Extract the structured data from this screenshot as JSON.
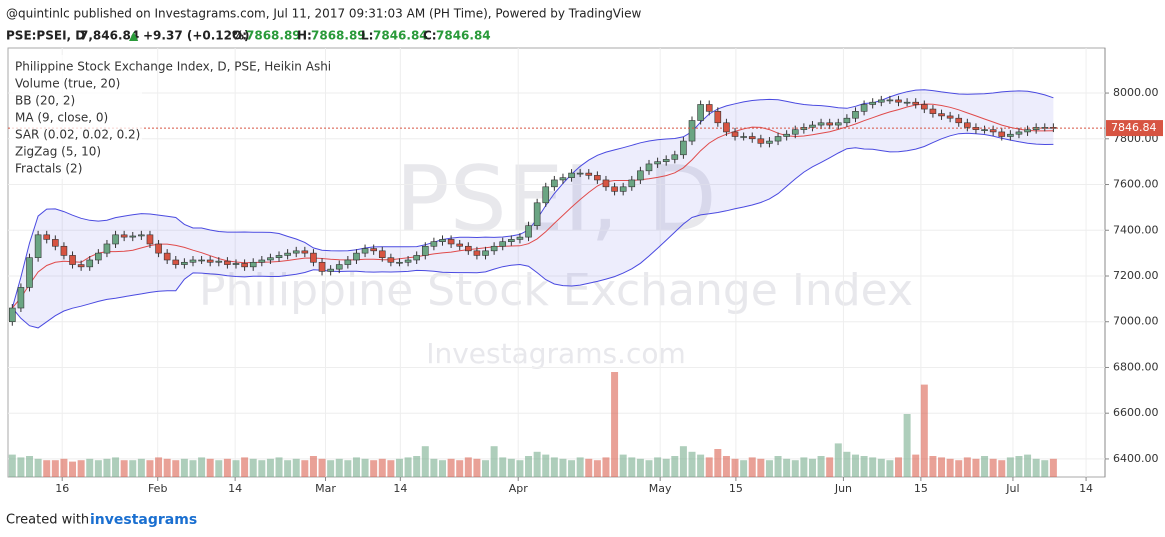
{
  "header": {
    "byline": "@quintinlc published on Investagrams.com, Jul 11, 2017 09:31:03 AM (PH Time), Powered by TradingView",
    "symbol": "PSE:PSEI, D",
    "last": "7,846.84",
    "arrow": "▲",
    "change": "+9.37 (+0.12%)",
    "o_label": "O:",
    "o": "7868.89",
    "h_label": "H:",
    "h": "7868.89",
    "l_label": "L:",
    "l": "7846.84",
    "c_label": "C:",
    "c": "7846.84"
  },
  "footer": {
    "created": "Created with",
    "brand": "investagrams"
  },
  "chart_data": {
    "type": "candlestick",
    "legend": [
      "Philippine Stock Exchange Index, D, PSE, Heikin Ashi",
      "Volume (true, 20)",
      "BB (20, 2)",
      "MA (9, close, 0)",
      "SAR (0.02, 0.02, 0.2)",
      "ZigZag (5, 10)",
      "Fractals (2)"
    ],
    "watermarks": [
      "PSEI, D",
      "Philippine Stock Exchange Index",
      "Investagrams.com"
    ],
    "up_color": "#6ba583",
    "down_color": "#d75442",
    "ma_color": "#e04b4b",
    "bb_color": "#4a4ae0",
    "open": [
      7000,
      7060,
      7150,
      7280,
      7380,
      7360,
      7330,
      7290,
      7250,
      7240,
      7270,
      7300,
      7340,
      7380,
      7370,
      7375,
      7380,
      7340,
      7300,
      7270,
      7250,
      7260,
      7270,
      7270,
      7260,
      7265,
      7250,
      7255,
      7240,
      7260,
      7270,
      7280,
      7290,
      7300,
      7310,
      7300,
      7260,
      7220,
      7230,
      7250,
      7270,
      7300,
      7320,
      7310,
      7280,
      7260,
      7260,
      7270,
      7290,
      7330,
      7350,
      7360,
      7340,
      7330,
      7310,
      7290,
      7310,
      7330,
      7350,
      7360,
      7370,
      7420,
      7520,
      7590,
      7620,
      7630,
      7650,
      7650,
      7640,
      7620,
      7590,
      7570,
      7590,
      7620,
      7660,
      7690,
      7700,
      7710,
      7730,
      7790,
      7880,
      7950,
      7920,
      7870,
      7830,
      7810,
      7810,
      7800,
      7780,
      7790,
      7810,
      7820,
      7840,
      7850,
      7860,
      7870,
      7860,
      7870,
      7890,
      7920,
      7950,
      7960,
      7970,
      7970,
      7960,
      7960,
      7950,
      7930,
      7910,
      7900,
      7890,
      7870,
      7850,
      7840,
      7840,
      7830,
      7810,
      7820,
      7830,
      7840,
      7850,
      7850
    ],
    "close": [
      7060,
      7150,
      7280,
      7380,
      7360,
      7330,
      7290,
      7250,
      7240,
      7270,
      7300,
      7340,
      7380,
      7370,
      7375,
      7380,
      7340,
      7300,
      7270,
      7250,
      7260,
      7270,
      7270,
      7260,
      7265,
      7250,
      7255,
      7240,
      7260,
      7270,
      7280,
      7290,
      7300,
      7310,
      7300,
      7260,
      7220,
      7230,
      7250,
      7270,
      7300,
      7320,
      7310,
      7280,
      7260,
      7260,
      7270,
      7290,
      7330,
      7350,
      7360,
      7340,
      7330,
      7310,
      7290,
      7310,
      7330,
      7350,
      7360,
      7370,
      7420,
      7520,
      7590,
      7620,
      7630,
      7650,
      7650,
      7640,
      7620,
      7590,
      7570,
      7590,
      7620,
      7660,
      7690,
      7700,
      7710,
      7730,
      7790,
      7880,
      7950,
      7920,
      7870,
      7830,
      7810,
      7810,
      7800,
      7780,
      7790,
      7810,
      7820,
      7840,
      7850,
      7860,
      7870,
      7860,
      7870,
      7890,
      7920,
      7950,
      7960,
      7970,
      7970,
      7960,
      7960,
      7950,
      7930,
      7910,
      7900,
      7890,
      7870,
      7850,
      7840,
      7840,
      7830,
      7810,
      7820,
      7830,
      7840,
      7850,
      7850,
      7846.84
    ],
    "volume": [
      16,
      14,
      15,
      13,
      12,
      12,
      13,
      11,
      12,
      13,
      12,
      13,
      14,
      12,
      12,
      13,
      12,
      14,
      13,
      12,
      13,
      12,
      14,
      13,
      12,
      13,
      12,
      14,
      13,
      12,
      13,
      14,
      12,
      13,
      12,
      15,
      13,
      12,
      13,
      12,
      14,
      13,
      12,
      13,
      12,
      13,
      14,
      15,
      22,
      13,
      12,
      13,
      12,
      14,
      13,
      12,
      22,
      14,
      13,
      12,
      15,
      18,
      16,
      14,
      13,
      12,
      14,
      13,
      12,
      14,
      75,
      16,
      14,
      13,
      12,
      14,
      13,
      15,
      22,
      18,
      16,
      14,
      20,
      15,
      13,
      12,
      14,
      13,
      12,
      15,
      13,
      12,
      14,
      13,
      15,
      14,
      24,
      18,
      16,
      15,
      14,
      13,
      12,
      14,
      45,
      16,
      66,
      15,
      14,
      13,
      12,
      14,
      13,
      15,
      13,
      12,
      14,
      15,
      16,
      13,
      12,
      13
    ],
    "vlim": [
      0,
      100
    ],
    "xlim": [
      -0.5,
      127
    ],
    "xticks": [
      {
        "value": 5.8,
        "label": "16"
      },
      {
        "value": 16.9,
        "label": "Feb"
      },
      {
        "value": 25.9,
        "label": "14"
      },
      {
        "value": 36.4,
        "label": "Mar"
      },
      {
        "value": 45.1,
        "label": "14"
      },
      {
        "value": 58.8,
        "label": "Apr"
      },
      {
        "value": 75.3,
        "label": "May"
      },
      {
        "value": 84.1,
        "label": "15"
      },
      {
        "value": 96.6,
        "label": "Jun"
      },
      {
        "value": 105.6,
        "label": "15"
      },
      {
        "value": 116.3,
        "label": "Jul"
      },
      {
        "value": 124.8,
        "label": "14"
      }
    ],
    "ylim": [
      6321,
      8197
    ],
    "yticks": [
      {
        "value": 6400,
        "label": "6400.00"
      },
      {
        "value": 6600,
        "label": "6600.00"
      },
      {
        "value": 6800,
        "label": "6800.00"
      },
      {
        "value": 7000,
        "label": "7000.00"
      },
      {
        "value": 7200,
        "label": "7200.00"
      },
      {
        "value": 7400,
        "label": "7400.00"
      },
      {
        "value": 7600,
        "label": "7600.00"
      },
      {
        "value": 7800,
        "label": "7800.00"
      },
      {
        "value": 8000,
        "label": "8000.00"
      }
    ],
    "grid": true
  }
}
